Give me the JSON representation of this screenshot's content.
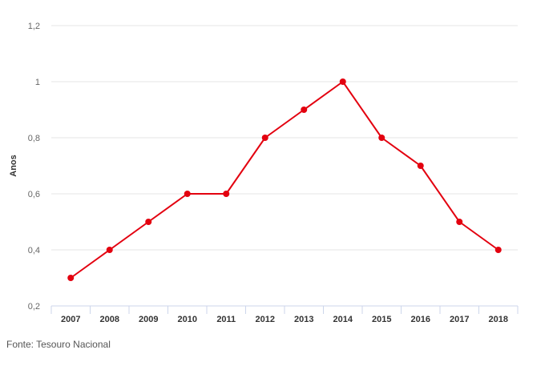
{
  "chart_data": {
    "type": "line",
    "title": "",
    "xlabel": "",
    "ylabel": "Anos",
    "x": [
      "2007",
      "2008",
      "2009",
      "2010",
      "2011",
      "2012",
      "2013",
      "2014",
      "2015",
      "2016",
      "2017",
      "2018"
    ],
    "series": [
      {
        "values": [
          0.3,
          0.4,
          0.5,
          0.6,
          0.6,
          0.8,
          0.9,
          1.0,
          0.8,
          0.7,
          0.5,
          0.4
        ]
      }
    ],
    "ylim": [
      0.2,
      1.2
    ],
    "yticks": [
      {
        "value": 0.2,
        "label": "0,2"
      },
      {
        "value": 0.4,
        "label": "0,4"
      },
      {
        "value": 0.6,
        "label": "0,6"
      },
      {
        "value": 0.8,
        "label": "0,8"
      },
      {
        "value": 1.0,
        "label": "1"
      },
      {
        "value": 1.2,
        "label": "1,2"
      }
    ],
    "grid": true,
    "legend": "none",
    "colors": {
      "line": "#e3000f",
      "grid": "#e6e6e6",
      "axis": "#ccd6eb"
    }
  },
  "footer": {
    "source": "Fonte: Tesouro Nacional"
  }
}
